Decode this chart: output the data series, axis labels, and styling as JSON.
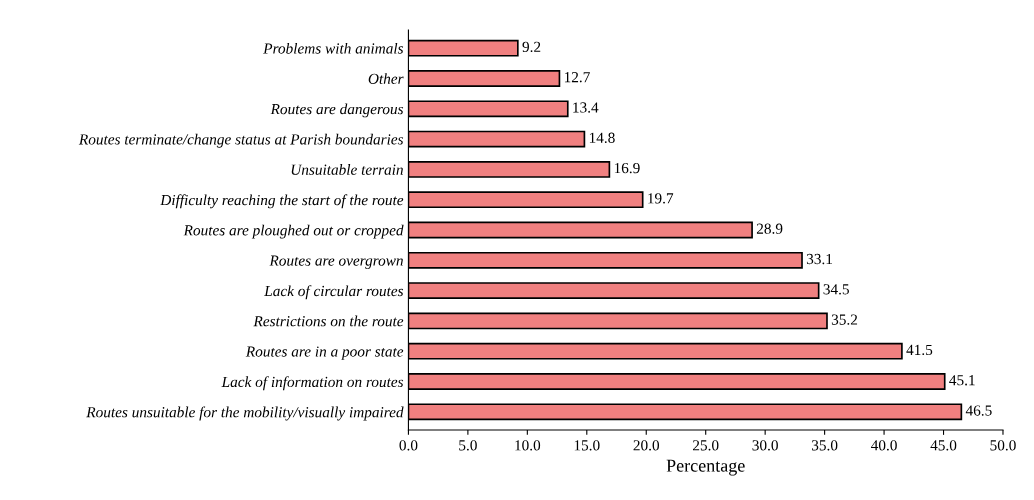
{
  "chart_data": {
    "type": "bar",
    "orientation": "horizontal",
    "xlabel": "Percentage",
    "categories": [
      "Problems with animals",
      "Other",
      "Routes are dangerous",
      "Routes terminate/change status at Parish boundaries",
      "Unsuitable terrain",
      "Difficulty reaching the start of the route",
      "Routes are ploughed out or cropped",
      "Routes are overgrown",
      "Lack of circular routes",
      "Restrictions on the route",
      "Routes are in a poor state",
      "Lack of information on routes",
      "Routes unsuitable for the mobility/visually impaired"
    ],
    "values": [
      9.2,
      12.7,
      13.4,
      14.8,
      16.9,
      19.7,
      28.9,
      33.1,
      34.5,
      35.2,
      41.5,
      45.1,
      46.5
    ],
    "color": "#f08080",
    "data_labels": true,
    "xlim": [
      0,
      50
    ],
    "xticks": [
      {
        "value": 0,
        "label": "0.0"
      },
      {
        "value": 5,
        "label": "5.0"
      },
      {
        "value": 10,
        "label": "10.0"
      },
      {
        "value": 15,
        "label": "15.0"
      },
      {
        "value": 20,
        "label": "20.0"
      },
      {
        "value": 25,
        "label": "25.0"
      },
      {
        "value": 30,
        "label": "30.0"
      },
      {
        "value": 35,
        "label": "35.0"
      },
      {
        "value": 40,
        "label": "40.0"
      },
      {
        "value": 45,
        "label": "45.0"
      },
      {
        "value": 50,
        "label": "50.0"
      }
    ],
    "grid": false
  }
}
